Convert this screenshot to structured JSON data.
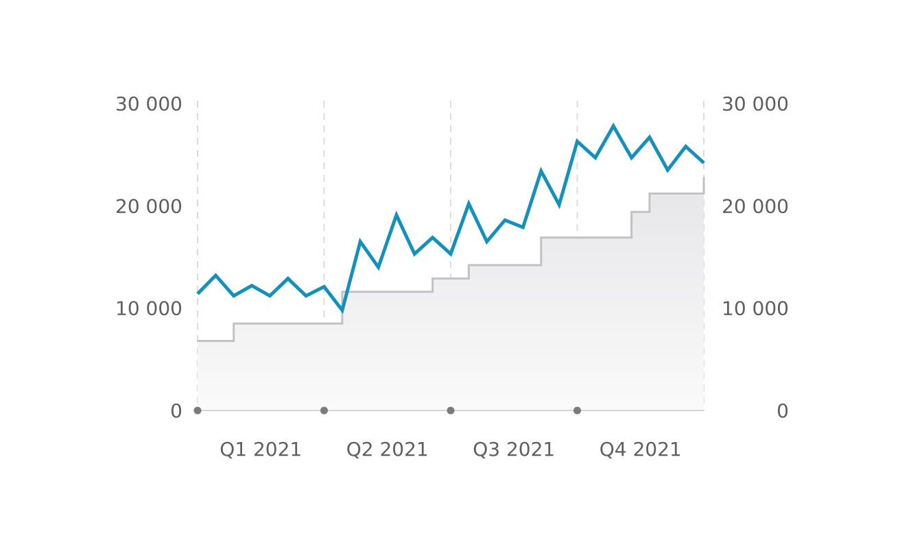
{
  "chart_data": {
    "type": "line",
    "title": "",
    "xlabel": "",
    "ylabel": "",
    "ylim": [
      0,
      30000
    ],
    "y_ticks": [
      0,
      10000,
      20000,
      30000
    ],
    "y_tick_labels": [
      "0",
      "10 000",
      "20 000",
      "30 000"
    ],
    "right_axis": true,
    "grid": "vertical dashed lines at quarter boundaries",
    "legend": "none",
    "quarters": [
      "Q1 2021",
      "Q2 2021",
      "Q3 2021",
      "Q4 2021"
    ],
    "points_per_quarter": 7,
    "series": [
      {
        "style": "line",
        "color": "#1590bb",
        "values": [
          11400,
          13200,
          11200,
          12200,
          11200,
          12900,
          11200,
          12100,
          9800,
          16500,
          14000,
          19100,
          15300,
          16900,
          15300,
          20200,
          16500,
          18600,
          17900,
          23400,
          20100,
          26300,
          24700,
          27800,
          24700,
          26700,
          23500,
          25800,
          24200
        ]
      },
      {
        "style": "step-area",
        "color": "#c2c2c4",
        "fill": "#ececee",
        "values": [
          6800,
          6800,
          8500,
          8500,
          8500,
          8500,
          8500,
          8500,
          11600,
          11600,
          11600,
          11600,
          11600,
          12900,
          12900,
          14200,
          14200,
          14200,
          14200,
          16900,
          16900,
          16900,
          16900,
          16900,
          19400,
          21200,
          21200,
          21200,
          22800
        ]
      }
    ]
  }
}
